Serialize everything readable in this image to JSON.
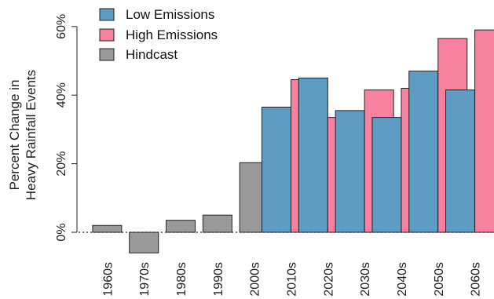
{
  "chart_data": {
    "type": "bar",
    "ylabel_lines": [
      "Percent Change in",
      "Heavy Rainfall Events"
    ],
    "xlabel": "",
    "ylim": [
      -6,
      62
    ],
    "yticks": [
      0,
      20,
      40,
      60
    ],
    "ytick_labels": [
      "0%",
      "20%",
      "40%",
      "60%"
    ],
    "categories": [
      "1960s",
      "1970s",
      "1980s",
      "1990s",
      "2000s",
      "2010s",
      "2020s",
      "2030s",
      "2040s",
      "2050s",
      "2060s"
    ],
    "legend_position": "top-left",
    "baseline_style": "dotted",
    "series": [
      {
        "name": "Low Emissions",
        "color": "#5f9cc4",
        "values": [
          null,
          null,
          null,
          null,
          null,
          36.5,
          45,
          35.5,
          33.5,
          47,
          41.5
        ]
      },
      {
        "name": "High Emissions",
        "color": "#f7819e",
        "values": [
          null,
          null,
          null,
          null,
          null,
          44.5,
          33.5,
          41.5,
          42,
          56.5,
          59
        ]
      },
      {
        "name": "Hindcast",
        "color": "#999999",
        "values": [
          2,
          -6,
          3.5,
          5,
          20.3,
          null,
          null,
          null,
          null,
          null,
          null
        ]
      }
    ]
  }
}
